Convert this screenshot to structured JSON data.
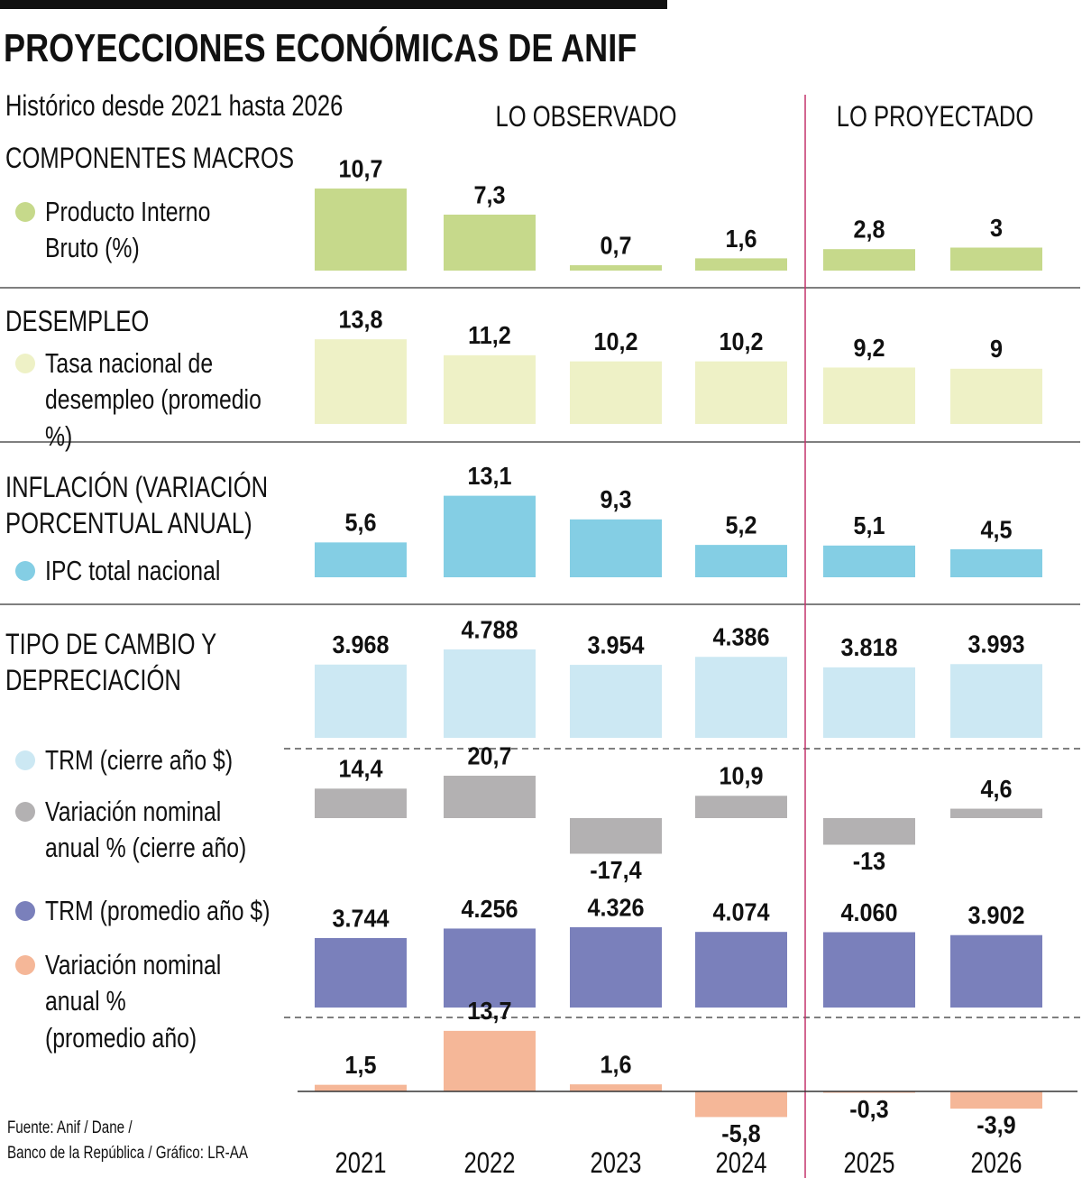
{
  "title": "PROYECCIONES ECONÓMICAS DE ANIF",
  "subtitle": "Histórico desde 2021 hasta 2026",
  "periods": [
    "LO OBSERVADO",
    "LO PROYECTADO"
  ],
  "source": [
    "Fuente: Anif / Dane /",
    "Banco de la República / Gráfico: LR-AA"
  ],
  "chart_data": [
    {
      "type": "bar",
      "title": "COMPONENTES MACROS",
      "series": [
        {
          "name": "Producto Interno Bruto (%)",
          "color": "#c6d98b",
          "values": [
            10.7,
            7.3,
            0.7,
            1.6,
            2.8,
            3
          ],
          "value_labels": [
            "10,7",
            "7,3",
            "0,7",
            "1,6",
            "2,8",
            "3"
          ]
        }
      ]
    },
    {
      "type": "bar",
      "title": "DESEMPLEO",
      "series": [
        {
          "name": "Tasa nacional de desempleo (promedio %)",
          "color": "#eef1c6",
          "values": [
            13.8,
            11.2,
            10.2,
            10.2,
            9.2,
            9
          ],
          "value_labels": [
            "13,8",
            "11,2",
            "10,2",
            "10,2",
            "9,2",
            "9"
          ]
        }
      ]
    },
    {
      "type": "bar",
      "title": "INFLACIÓN (VARIACIÓN PORCENTUAL ANUAL)",
      "series": [
        {
          "name": "IPC total nacional",
          "color": "#84cee4",
          "values": [
            5.6,
            13.1,
            9.3,
            5.2,
            5.1,
            4.5
          ],
          "value_labels": [
            "5,6",
            "13,1",
            "9,3",
            "5,2",
            "5,1",
            "4,5"
          ]
        }
      ]
    },
    {
      "type": "bar",
      "title": "TIPO DE CAMBIO Y DEPRECIACIÓN",
      "series": [
        {
          "name": "TRM (cierre año $)",
          "color": "#cce8f3",
          "values": [
            3968,
            4788,
            3954,
            4386,
            3818,
            3993
          ],
          "value_labels": [
            "3.968",
            "4.788",
            "3.954",
            "4.386",
            "3.818",
            "3.993"
          ]
        }
      ]
    },
    {
      "type": "bar",
      "series": [
        {
          "name": "Variación nominal anual % (cierre año)",
          "color": "#b3b1b2",
          "values": [
            14.4,
            20.7,
            -17.4,
            10.9,
            -13,
            4.6
          ],
          "value_labels": [
            "14,4",
            "20,7",
            "-17,4",
            "10,9",
            "-13",
            "4,6"
          ]
        }
      ]
    },
    {
      "type": "bar",
      "series": [
        {
          "name": "TRM (promedio año $)",
          "color": "#7a80bb",
          "values": [
            3744,
            4256,
            4326,
            4074,
            4060,
            3902
          ],
          "value_labels": [
            "3.744",
            "4.256",
            "4.326",
            "4.074",
            "4.060",
            "3.902"
          ]
        }
      ]
    },
    {
      "type": "bar",
      "categories": [
        "2021",
        "2022",
        "2023",
        "2024",
        "2025",
        "2026"
      ],
      "series": [
        {
          "name": "Variación nominal anual % (promedio año)",
          "color": "#f5b798",
          "values": [
            1.5,
            13.7,
            1.6,
            -5.8,
            -0.3,
            -3.9
          ],
          "value_labels": [
            "1,5",
            "13,7",
            "1,6",
            "-5,8",
            "-0,3",
            "-3,9"
          ]
        }
      ]
    }
  ]
}
